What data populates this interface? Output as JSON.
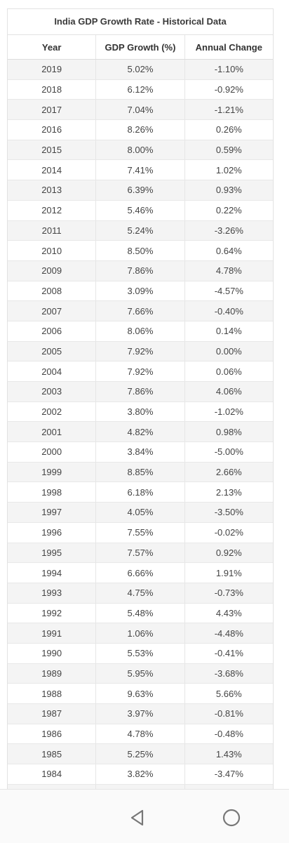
{
  "table": {
    "title": "India GDP Growth Rate - Historical Data",
    "headers": [
      "Year",
      "GDP Growth (%)",
      "Annual Change"
    ],
    "rows": [
      [
        "2019",
        "5.02%",
        "-1.10%"
      ],
      [
        "2018",
        "6.12%",
        "-0.92%"
      ],
      [
        "2017",
        "7.04%",
        "-1.21%"
      ],
      [
        "2016",
        "8.26%",
        "0.26%"
      ],
      [
        "2015",
        "8.00%",
        "0.59%"
      ],
      [
        "2014",
        "7.41%",
        "1.02%"
      ],
      [
        "2013",
        "6.39%",
        "0.93%"
      ],
      [
        "2012",
        "5.46%",
        "0.22%"
      ],
      [
        "2011",
        "5.24%",
        "-3.26%"
      ],
      [
        "2010",
        "8.50%",
        "0.64%"
      ],
      [
        "2009",
        "7.86%",
        "4.78%"
      ],
      [
        "2008",
        "3.09%",
        "-4.57%"
      ],
      [
        "2007",
        "7.66%",
        "-0.40%"
      ],
      [
        "2006",
        "8.06%",
        "0.14%"
      ],
      [
        "2005",
        "7.92%",
        "0.00%"
      ],
      [
        "2004",
        "7.92%",
        "0.06%"
      ],
      [
        "2003",
        "7.86%",
        "4.06%"
      ],
      [
        "2002",
        "3.80%",
        "-1.02%"
      ],
      [
        "2001",
        "4.82%",
        "0.98%"
      ],
      [
        "2000",
        "3.84%",
        "-5.00%"
      ],
      [
        "1999",
        "8.85%",
        "2.66%"
      ],
      [
        "1998",
        "6.18%",
        "2.13%"
      ],
      [
        "1997",
        "4.05%",
        "-3.50%"
      ],
      [
        "1996",
        "7.55%",
        "-0.02%"
      ],
      [
        "1995",
        "7.57%",
        "0.92%"
      ],
      [
        "1994",
        "6.66%",
        "1.91%"
      ],
      [
        "1993",
        "4.75%",
        "-0.73%"
      ],
      [
        "1992",
        "5.48%",
        "4.43%"
      ],
      [
        "1991",
        "1.06%",
        "-4.48%"
      ],
      [
        "1990",
        "5.53%",
        "-0.41%"
      ],
      [
        "1989",
        "5.95%",
        "-3.68%"
      ],
      [
        "1988",
        "9.63%",
        "5.66%"
      ],
      [
        "1987",
        "3.97%",
        "-0.81%"
      ],
      [
        "1986",
        "4.78%",
        "-0.48%"
      ],
      [
        "1985",
        "5.25%",
        "1.43%"
      ],
      [
        "1984",
        "3.82%",
        "-3.47%"
      ]
    ]
  },
  "navbar": {
    "back_icon": "back-triangle-icon",
    "home_icon": "home-circle-icon"
  }
}
